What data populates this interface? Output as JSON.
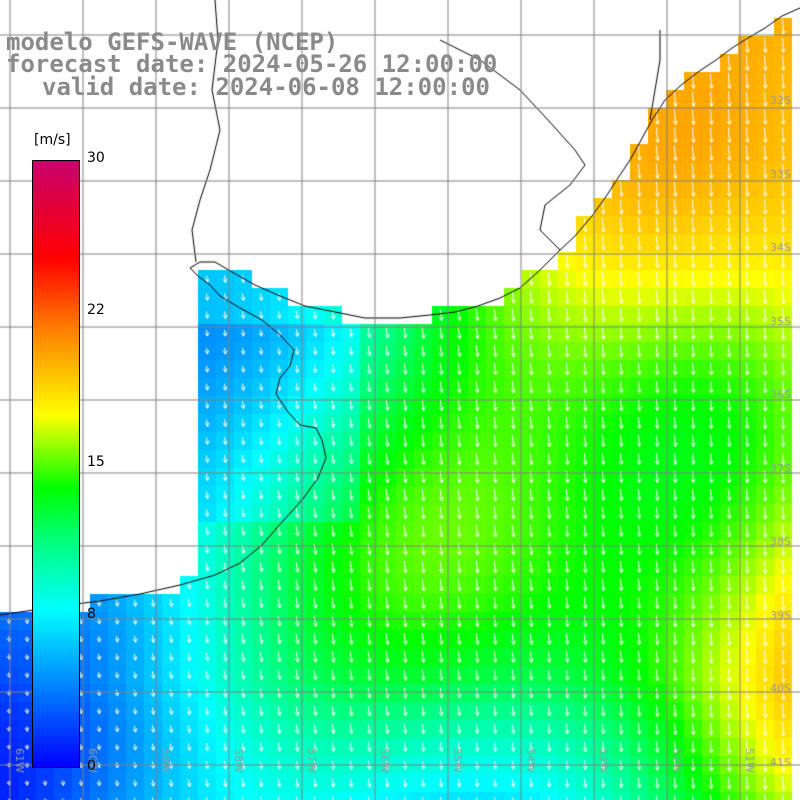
{
  "title": {
    "line1": "modelo GEFS-WAVE (NCEP)",
    "line2": "forecast date: 2024-05-26 12:00:00",
    "line3": "valid date: 2024-06-08 12:00:00"
  },
  "colorbar": {
    "unit": "[m/s]",
    "ticks": [
      "30",
      "22",
      "15",
      "8",
      "0"
    ],
    "range": [
      0,
      30
    ]
  },
  "map": {
    "variable": "wind speed",
    "lat_labels": [
      "32S",
      "33S",
      "34S",
      "35S",
      "36S",
      "37S",
      "38S",
      "39S",
      "40S",
      "41S"
    ],
    "lon_labels": [
      "61W",
      "60W",
      "59W",
      "58W",
      "57W",
      "56W",
      "55W",
      "54W",
      "53W",
      "52W",
      "51W"
    ],
    "lon_range": [
      -61.5,
      -50.5
    ],
    "lat_range": [
      -41.5,
      -30.5
    ],
    "wind_direction": "from north-east, pointing south-west",
    "colors": {
      "coast": "#000000",
      "land": "#ffffff",
      "grid": "#808080",
      "arrows": "#ffffff"
    }
  }
}
